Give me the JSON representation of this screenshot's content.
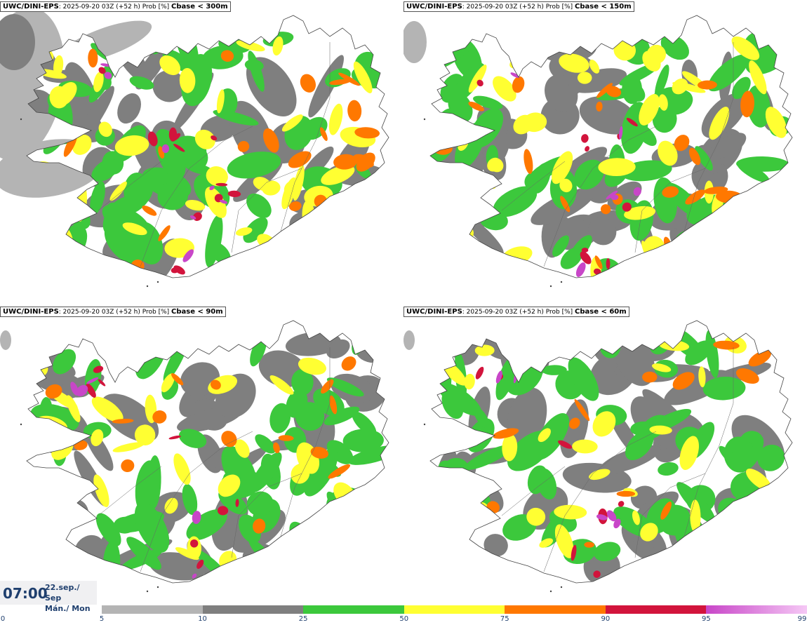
{
  "panels": [
    {
      "model": "UWC/DINI-EPS",
      "run": ": 2025-09-20 03Z (+52 h) Prob [%] ",
      "cbase": "Cbase < 300m"
    },
    {
      "model": "UWC/DINI-EPS",
      "run": ": 2025-09-20 03Z (+52 h) Prob [%] ",
      "cbase": "Cbase < 150m"
    },
    {
      "model": "UWC/DINI-EPS",
      "run": ": 2025-09-20 03Z (+52 h) Prob [%] ",
      "cbase": "Cbase < 90m"
    },
    {
      "model": "UWC/DINI-EPS",
      "run": ": 2025-09-20 03Z (+52 h) Prob [%] ",
      "cbase": "Cbase < 60m"
    }
  ],
  "valid_time": {
    "time": "07:00",
    "date_line1": "22.sep./ Sep",
    "date_line2": "Mán./ Mon"
  },
  "colorbar": {
    "ticks": [
      "0",
      "5",
      "10",
      "25",
      "50",
      "75",
      "90",
      "95",
      "99"
    ],
    "colors": [
      "#b4b4b4",
      "#7f7f7f",
      "#3cc83c",
      "#ffff32",
      "#ff7800",
      "#d2143c",
      "#c846c8"
    ],
    "top_gradient_end": "#f5c8f5"
  }
}
